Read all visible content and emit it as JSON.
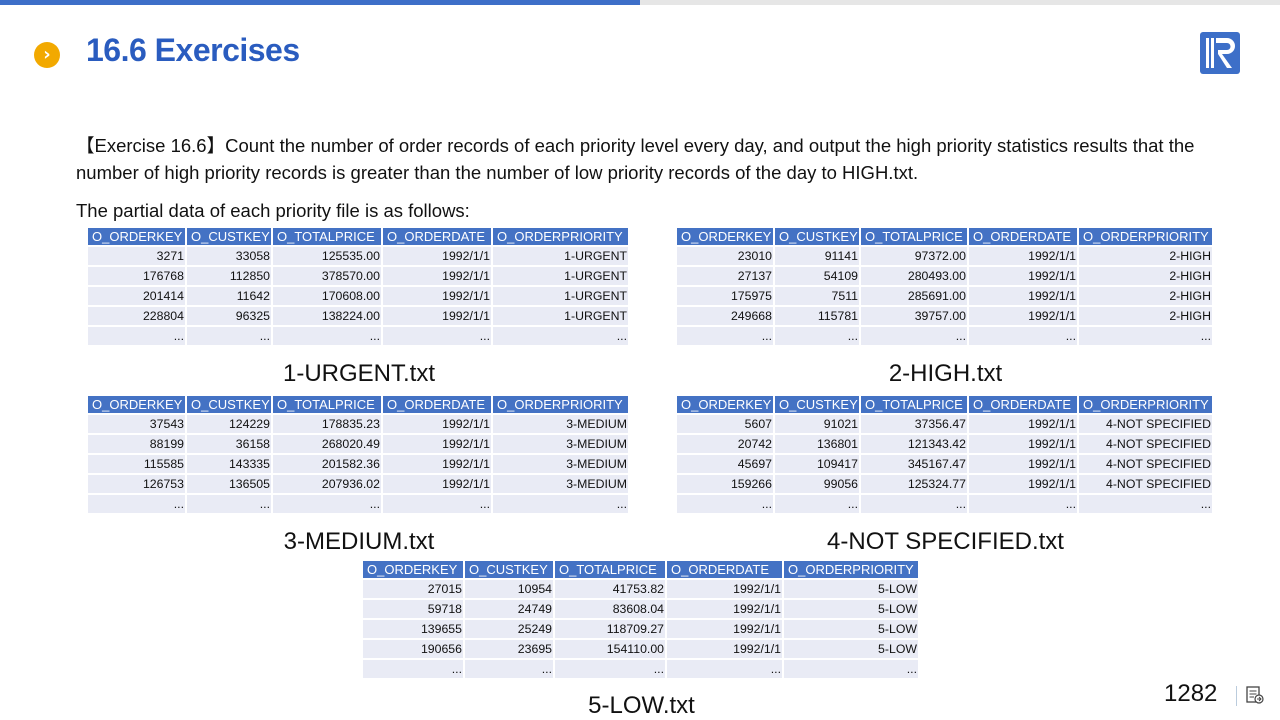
{
  "progress": {
    "fraction": 0.5,
    "color": "#3d6fc8"
  },
  "header": {
    "title": "16.6 Exercises",
    "bullet_icon": "chevron-right-circle-icon",
    "logo": "R"
  },
  "exercise": {
    "text": "【Exercise 16.6】Count the number of order records of each priority level every day, and output the high priority statistics results that the number of high priority records is greater than the number of low priority records of the day to HIGH.txt.",
    "intro": "The partial data of each priority file is as follows:"
  },
  "columns": [
    "O_ORDERKEY",
    "O_CUSTKEY",
    "O_TOTALPRICE",
    "O_ORDERDATE",
    "O_ORDERPRIORITY"
  ],
  "tables": [
    {
      "caption": "1-URGENT.txt",
      "rows": [
        [
          "3271",
          "33058",
          "125535.00",
          "1992/1/1",
          "1-URGENT"
        ],
        [
          "176768",
          "112850",
          "378570.00",
          "1992/1/1",
          "1-URGENT"
        ],
        [
          "201414",
          "11642",
          "170608.00",
          "1992/1/1",
          "1-URGENT"
        ],
        [
          "228804",
          "96325",
          "138224.00",
          "1992/1/1",
          "1-URGENT"
        ],
        [
          "...",
          "...",
          "...",
          "...",
          "..."
        ]
      ]
    },
    {
      "caption": "2-HIGH.txt",
      "rows": [
        [
          "23010",
          "91141",
          "97372.00",
          "1992/1/1",
          "2-HIGH"
        ],
        [
          "27137",
          "54109",
          "280493.00",
          "1992/1/1",
          "2-HIGH"
        ],
        [
          "175975",
          "7511",
          "285691.00",
          "1992/1/1",
          "2-HIGH"
        ],
        [
          "249668",
          "115781",
          "39757.00",
          "1992/1/1",
          "2-HIGH"
        ],
        [
          "...",
          "...",
          "...",
          "...",
          "..."
        ]
      ]
    },
    {
      "caption": "3-MEDIUM.txt",
      "rows": [
        [
          "37543",
          "124229",
          "178835.23",
          "1992/1/1",
          "3-MEDIUM"
        ],
        [
          "88199",
          "36158",
          "268020.49",
          "1992/1/1",
          "3-MEDIUM"
        ],
        [
          "115585",
          "143335",
          "201582.36",
          "1992/1/1",
          "3-MEDIUM"
        ],
        [
          "126753",
          "136505",
          "207936.02",
          "1992/1/1",
          "3-MEDIUM"
        ],
        [
          "...",
          "...",
          "...",
          "...",
          "..."
        ]
      ]
    },
    {
      "caption": "4-NOT SPECIFIED.txt",
      "rows": [
        [
          "5607",
          "91021",
          "37356.47",
          "1992/1/1",
          "4-NOT SPECIFIED"
        ],
        [
          "20742",
          "136801",
          "121343.42",
          "1992/1/1",
          "4-NOT SPECIFIED"
        ],
        [
          "45697",
          "109417",
          "345167.47",
          "1992/1/1",
          "4-NOT SPECIFIED"
        ],
        [
          "159266",
          "99056",
          "125324.77",
          "1992/1/1",
          "4-NOT SPECIFIED"
        ],
        [
          "...",
          "...",
          "...",
          "...",
          "..."
        ]
      ]
    },
    {
      "caption": "5-LOW.txt",
      "rows": [
        [
          "27015",
          "10954",
          "41753.82",
          "1992/1/1",
          "5-LOW"
        ],
        [
          "59718",
          "24749",
          "83608.04",
          "1992/1/1",
          "5-LOW"
        ],
        [
          "139655",
          "25249",
          "118709.27",
          "1992/1/1",
          "5-LOW"
        ],
        [
          "190656",
          "23695",
          "154110.00",
          "1992/1/1",
          "5-LOW"
        ],
        [
          "...",
          "...",
          "...",
          "...",
          "..."
        ]
      ]
    }
  ],
  "footer": {
    "page_number": "1282",
    "notes_icon": "notes-icon"
  }
}
